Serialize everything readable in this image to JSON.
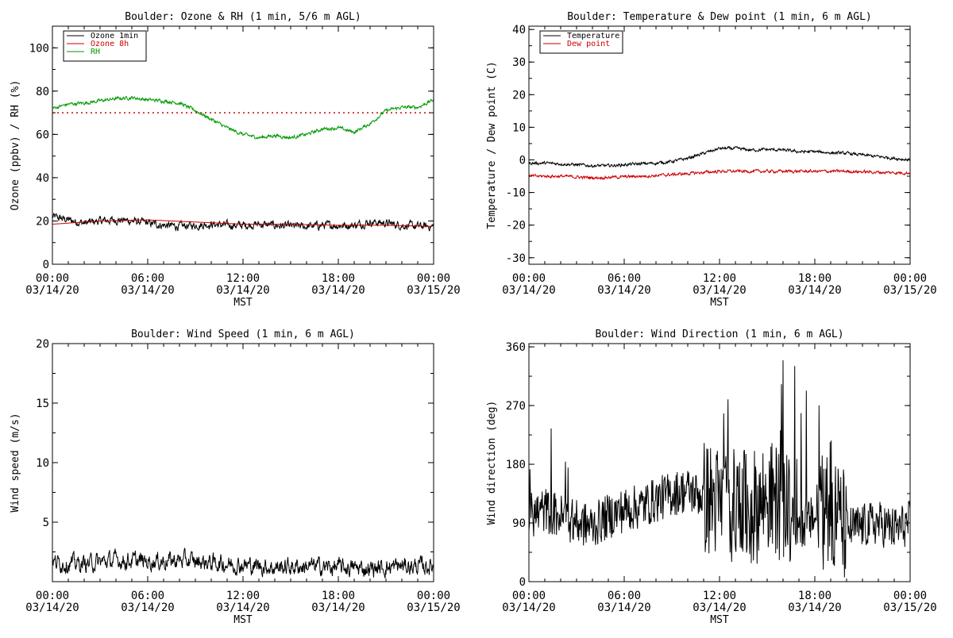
{
  "chart_data": [
    {
      "type": "line",
      "title": "Boulder: Ozone & RH (1 min, 5/6 m AGL)",
      "ylabel": "Ozone (ppbv) / RH (%)",
      "xlabel": "MST",
      "xlim": [
        "03/14/20 00:00",
        "03/15/20 00:00"
      ],
      "x_ticks": [
        {
          "time": "00:00",
          "date": "03/14/20"
        },
        {
          "time": "06:00",
          "date": "03/14/20"
        },
        {
          "time": "12:00",
          "date": "03/14/20"
        },
        {
          "time": "18:00",
          "date": "03/14/20"
        },
        {
          "time": "00:00",
          "date": "03/15/20"
        }
      ],
      "ylim": [
        0,
        110
      ],
      "y_ticks": [
        "0",
        "20",
        "40",
        "60",
        "80",
        "100"
      ],
      "legend_position": "top-left",
      "series": [
        {
          "name": "Ozone 1min",
          "color": "#000000",
          "style": "noisy",
          "x_hours": [
            0,
            1,
            2,
            3,
            4,
            5,
            6,
            7,
            8,
            9,
            10,
            11,
            12,
            13,
            14,
            15,
            16,
            17,
            18,
            19,
            20,
            21,
            22,
            23,
            24
          ],
          "values": [
            22,
            20.5,
            19,
            20,
            20.5,
            20,
            19,
            18,
            17.5,
            18,
            18.5,
            18,
            18,
            18.5,
            18,
            17.5,
            17.5,
            18,
            18,
            18,
            19.5,
            19,
            18,
            17.5,
            17.5
          ]
        },
        {
          "name": "Ozone 8h",
          "color": "#cc0000",
          "style": "smooth",
          "x_hours": [
            0,
            3,
            6,
            9,
            12,
            15,
            18,
            21,
            24
          ],
          "values": [
            18.5,
            20,
            20.5,
            19.5,
            18.5,
            18.5,
            18,
            18,
            17.5
          ]
        },
        {
          "name": "RH",
          "color": "#009900",
          "style": "noisy",
          "x_hours": [
            0,
            1,
            2,
            3,
            4,
            5,
            6,
            7,
            8,
            9,
            10,
            11,
            12,
            13,
            14,
            15,
            16,
            17,
            18,
            19,
            20,
            21,
            22,
            23,
            24
          ],
          "values": [
            72,
            74,
            74.5,
            75.5,
            76.5,
            77,
            76,
            75.5,
            74.5,
            71,
            67,
            63,
            60,
            58.5,
            59.5,
            58.5,
            60,
            62.5,
            63,
            61,
            65,
            71,
            72.5,
            72.5,
            76
          ]
        }
      ],
      "reference_line": {
        "value": 70,
        "color": "#cc0000",
        "style": "dotted"
      }
    },
    {
      "type": "line",
      "title": "Boulder: Temperature & Dew point (1 min, 6 m AGL)",
      "ylabel": "Temperature / Dew point (C)",
      "xlabel": "MST",
      "xlim": [
        "03/14/20 00:00",
        "03/15/20 00:00"
      ],
      "x_ticks": [
        {
          "time": "00:00",
          "date": "03/14/20"
        },
        {
          "time": "06:00",
          "date": "03/14/20"
        },
        {
          "time": "12:00",
          "date": "03/14/20"
        },
        {
          "time": "18:00",
          "date": "03/14/20"
        },
        {
          "time": "00:00",
          "date": "03/15/20"
        }
      ],
      "ylim": [
        -32,
        41
      ],
      "y_ticks": [
        "-30",
        "-20",
        "-10",
        "0",
        "10",
        "20",
        "30",
        "40"
      ],
      "legend_position": "top-left",
      "series": [
        {
          "name": "Temperature",
          "color": "#000000",
          "style": "noisy",
          "x_hours": [
            0,
            1,
            2,
            3,
            4,
            5,
            6,
            7,
            8,
            9,
            10,
            11,
            12,
            13,
            14,
            15,
            16,
            17,
            18,
            19,
            20,
            21,
            22,
            23,
            24
          ],
          "values": [
            -1,
            -1,
            -1.2,
            -1.5,
            -1.8,
            -1.8,
            -1.5,
            -1.2,
            -1,
            -0.5,
            0.5,
            2,
            3.5,
            3.5,
            3,
            3.2,
            3,
            2.5,
            2.5,
            2.2,
            2,
            1.5,
            1,
            0.5,
            0
          ]
        },
        {
          "name": "Dew point",
          "color": "#cc0000",
          "style": "noisy",
          "x_hours": [
            0,
            2,
            4,
            6,
            8,
            10,
            12,
            14,
            16,
            18,
            20,
            22,
            24
          ],
          "values": [
            -5,
            -5,
            -5.5,
            -5.2,
            -4.8,
            -4.2,
            -3.5,
            -3.5,
            -3.5,
            -3.5,
            -3.5,
            -3.8,
            -4
          ]
        }
      ]
    },
    {
      "type": "line",
      "title": "Boulder: Wind Speed (1 min, 6 m AGL)",
      "ylabel": "Wind speed (m/s)",
      "xlabel": "MST",
      "xlim": [
        "03/14/20 00:00",
        "03/15/20 00:00"
      ],
      "x_ticks": [
        {
          "time": "00:00",
          "date": "03/14/20"
        },
        {
          "time": "06:00",
          "date": "03/14/20"
        },
        {
          "time": "12:00",
          "date": "03/14/20"
        },
        {
          "time": "18:00",
          "date": "03/14/20"
        },
        {
          "time": "00:00",
          "date": "03/15/20"
        }
      ],
      "ylim": [
        0,
        20
      ],
      "y_ticks": [
        "5",
        "10",
        "15",
        "20"
      ],
      "series": [
        {
          "name": "",
          "color": "#000000",
          "style": "noisy",
          "x_hours": [
            0,
            2,
            4,
            6,
            8,
            10,
            12,
            14,
            16,
            18,
            20,
            22,
            24
          ],
          "values": [
            1.6,
            1.5,
            1.8,
            1.7,
            1.8,
            1.6,
            1.4,
            1.2,
            1.3,
            1.2,
            1.1,
            1.3,
            1.3
          ]
        }
      ]
    },
    {
      "type": "line",
      "title": "Boulder: Wind Direction (1 min, 6 m AGL)",
      "ylabel": "Wind direction (deg)",
      "xlabel": "MST",
      "xlim": [
        "03/14/20 00:00",
        "03/15/20 00:00"
      ],
      "x_ticks": [
        {
          "time": "00:00",
          "date": "03/14/20"
        },
        {
          "time": "06:00",
          "date": "03/14/20"
        },
        {
          "time": "12:00",
          "date": "03/14/20"
        },
        {
          "time": "18:00",
          "date": "03/14/20"
        },
        {
          "time": "00:00",
          "date": "03/15/20"
        }
      ],
      "ylim": [
        0,
        365
      ],
      "y_ticks": [
        "0",
        "90",
        "180",
        "270",
        "360"
      ],
      "series": [
        {
          "name": "",
          "color": "#000000",
          "style": "spiky",
          "x_hours": [
            0,
            1,
            2,
            3,
            4,
            5,
            6,
            7,
            8,
            9,
            10,
            11,
            12,
            13,
            14,
            15,
            16,
            17,
            18,
            19,
            20,
            21,
            22,
            23,
            24
          ],
          "values": [
            100,
            110,
            100,
            90,
            85,
            100,
            110,
            115,
            125,
            135,
            140,
            130,
            120,
            115,
            110,
            130,
            120,
            80,
            100,
            110,
            80,
            85,
            90,
            80,
            90
          ]
        }
      ]
    }
  ]
}
